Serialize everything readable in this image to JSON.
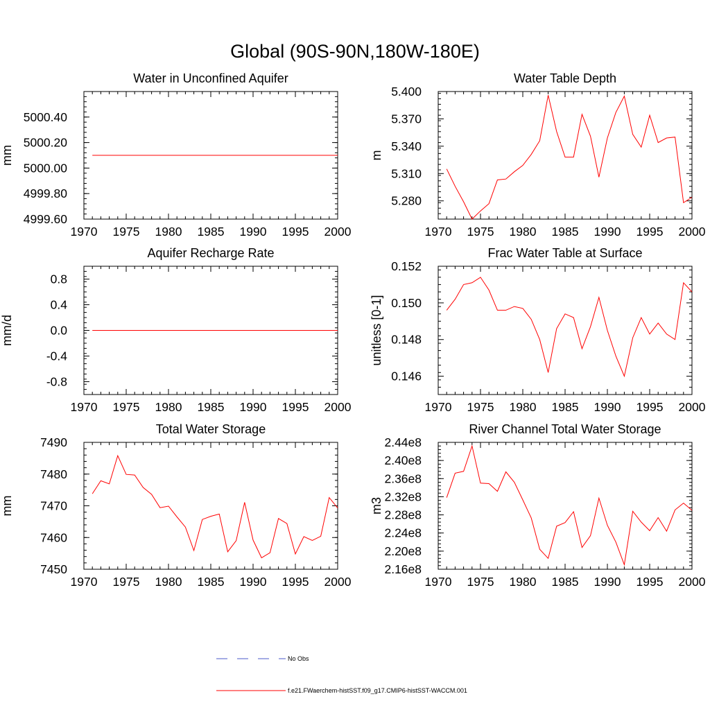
{
  "figure_title": "Global (90S-90N,180W-180E)",
  "colors": {
    "model": "#ff0000",
    "obs": "#4a5ac8",
    "axis": "#000000"
  },
  "legend": {
    "obs_label": "No Obs",
    "model_label": "f.e21.FWaerchem-histSST.f09_g17.CMIP6-histSST-WACCM.001"
  },
  "chart_data": [
    {
      "type": "line",
      "title": "Water in Unconfined Aquifer",
      "ylabel": "mm",
      "xlim": [
        1970,
        2000
      ],
      "ylim": [
        4999.6,
        5000.6
      ],
      "xticks": [
        1970,
        1975,
        1980,
        1985,
        1990,
        1995,
        2000
      ],
      "yticks": [
        4999.6,
        4999.8,
        5000.0,
        5000.2,
        5000.4
      ],
      "yticklabels": [
        "4999.60",
        "4999.80",
        "5000.00",
        "5000.20",
        "5000.40"
      ],
      "grid": false,
      "series": [
        {
          "x_start": 1971,
          "values": [
            5000.1,
            5000.1,
            5000.1,
            5000.1,
            5000.1,
            5000.1,
            5000.1,
            5000.1,
            5000.1,
            5000.1,
            5000.1,
            5000.1,
            5000.1,
            5000.1,
            5000.1,
            5000.1,
            5000.1,
            5000.1,
            5000.1,
            5000.1,
            5000.1,
            5000.1,
            5000.1,
            5000.1,
            5000.1,
            5000.1,
            5000.1,
            5000.1,
            5000.1,
            5000.1
          ]
        }
      ]
    },
    {
      "type": "line",
      "title": "Water Table Depth",
      "ylabel": "m",
      "xlim": [
        1970,
        2000
      ],
      "ylim": [
        5.26,
        5.4
      ],
      "xticks": [
        1970,
        1975,
        1980,
        1985,
        1990,
        1995,
        2000
      ],
      "yticks": [
        5.28,
        5.31,
        5.34,
        5.37,
        5.4
      ],
      "yticklabels": [
        "5.280",
        "5.310",
        "5.340",
        "5.370",
        "5.400"
      ],
      "grid": false,
      "series": [
        {
          "x_start": 1971,
          "values": [
            5.315,
            5.296,
            5.279,
            5.26,
            5.269,
            5.277,
            5.303,
            5.304,
            5.312,
            5.319,
            5.331,
            5.346,
            5.396,
            5.356,
            5.328,
            5.328,
            5.375,
            5.351,
            5.306,
            5.349,
            5.377,
            5.395,
            5.353,
            5.339,
            5.374,
            5.344,
            5.349,
            5.35,
            5.278,
            5.284
          ]
        }
      ]
    },
    {
      "type": "line",
      "title": "Aquifer Recharge Rate",
      "ylabel": "mm/d",
      "xlim": [
        1970,
        2000
      ],
      "ylim": [
        -1.0,
        1.0
      ],
      "xticks": [
        1970,
        1975,
        1980,
        1985,
        1990,
        1995,
        2000
      ],
      "yticks": [
        -0.8,
        -0.4,
        0.0,
        0.4,
        0.8
      ],
      "yticklabels": [
        "-0.8",
        "-0.4",
        "0.0",
        "0.4",
        "0.8"
      ],
      "grid": false,
      "series": [
        {
          "x_start": 1971,
          "values": [
            0,
            0,
            0,
            0,
            0,
            0,
            0,
            0,
            0,
            0,
            0,
            0,
            0,
            0,
            0,
            0,
            0,
            0,
            0,
            0,
            0,
            0,
            0,
            0,
            0,
            0,
            0,
            0,
            0,
            0
          ]
        }
      ]
    },
    {
      "type": "line",
      "title": "Frac Water Table at Surface",
      "ylabel": "unitless [0-1]",
      "xlim": [
        1970,
        2000
      ],
      "ylim": [
        0.145,
        0.152
      ],
      "xticks": [
        1970,
        1975,
        1980,
        1985,
        1990,
        1995,
        2000
      ],
      "yticks": [
        0.146,
        0.148,
        0.15,
        0.152
      ],
      "yticklabels": [
        "0.146",
        "0.148",
        "0.150",
        "0.152"
      ],
      "grid": false,
      "series": [
        {
          "x_start": 1971,
          "values": [
            0.1496,
            0.1502,
            0.151,
            0.1511,
            0.1514,
            0.1507,
            0.1496,
            0.1496,
            0.1498,
            0.1497,
            0.1491,
            0.148,
            0.1462,
            0.1486,
            0.1494,
            0.1492,
            0.1475,
            0.1487,
            0.1503,
            0.1485,
            0.1471,
            0.146,
            0.1481,
            0.1492,
            0.1483,
            0.1489,
            0.1483,
            0.148,
            0.1511,
            0.1506
          ]
        }
      ]
    },
    {
      "type": "line",
      "title": "Total Water Storage",
      "ylabel": "mm",
      "xlim": [
        1970,
        2000
      ],
      "ylim": [
        7450,
        7490
      ],
      "xticks": [
        1970,
        1975,
        1980,
        1985,
        1990,
        1995,
        2000
      ],
      "yticks": [
        7450,
        7460,
        7470,
        7480,
        7490
      ],
      "yticklabels": [
        "7450",
        "7460",
        "7470",
        "7480",
        "7490"
      ],
      "grid": false,
      "series": [
        {
          "x_start": 1971,
          "values": [
            7473.8,
            7477.9,
            7476.9,
            7485.8,
            7479.9,
            7479.7,
            7475.8,
            7473.6,
            7469.4,
            7469.9,
            7466.5,
            7463.3,
            7455.9,
            7465.7,
            7466.7,
            7467.4,
            7455.5,
            7459.0,
            7471.1,
            7459.2,
            7453.6,
            7455.2,
            7466.0,
            7464.4,
            7454.8,
            7460.3,
            7459.1,
            7460.4,
            7472.6,
            7469.3
          ]
        }
      ]
    },
    {
      "type": "line",
      "title": "River Channel Total Water Storage",
      "ylabel": "m3",
      "xlim": [
        1970,
        2000
      ],
      "ylim": [
        216000000.0,
        244000000.0
      ],
      "xticks": [
        1970,
        1975,
        1980,
        1985,
        1990,
        1995,
        2000
      ],
      "yticks": [
        216000000.0,
        220000000.0,
        224000000.0,
        228000000.0,
        232000000.0,
        236000000.0,
        240000000.0,
        244000000.0
      ],
      "yticklabels": [
        "2.16e8",
        "2.20e8",
        "2.24e8",
        "2.28e8",
        "2.32e8",
        "2.36e8",
        "2.40e8",
        "2.44e8"
      ],
      "grid": false,
      "series": [
        {
          "x_start": 1971,
          "values": [
            231800000.0,
            237200000.0,
            237600000.0,
            243200000.0,
            235000000.0,
            234900000.0,
            233200000.0,
            237500000.0,
            235200000.0,
            231300000.0,
            227300000.0,
            220400000.0,
            218400000.0,
            225500000.0,
            226300000.0,
            228700000.0,
            220800000.0,
            223400000.0,
            231700000.0,
            225700000.0,
            222000000.0,
            217000000.0,
            228800000.0,
            226400000.0,
            224500000.0,
            227400000.0,
            224400000.0,
            229100000.0,
            230600000.0,
            229000000.0
          ]
        }
      ]
    }
  ]
}
